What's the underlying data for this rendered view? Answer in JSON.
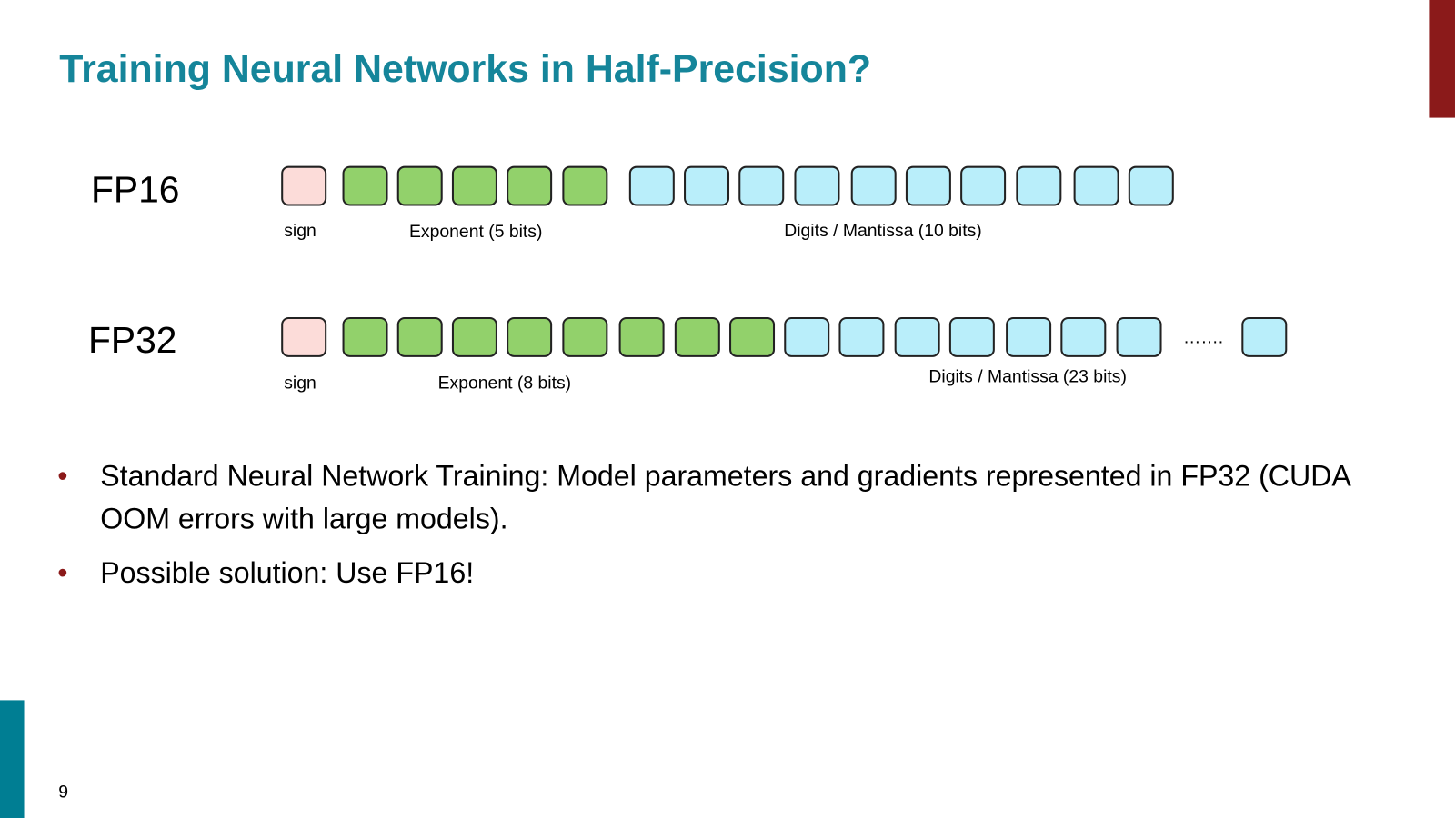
{
  "header": {
    "title": "Training Neural Networks in Half-Precision?"
  },
  "formats": [
    {
      "label": "FP16",
      "sign": "sign",
      "exponent": "Exponent (5 bits)",
      "mantissa": "Digits / Mantissa (10 bits)"
    },
    {
      "label": "FP32",
      "sign": "sign",
      "exponent": "Exponent (8 bits)",
      "mantissa": "Digits / Mantissa (23 bits)",
      "ellipsis": "……."
    }
  ],
  "bullets": [
    "Standard Neural Network Training: Model parameters and gradients represented in FP32 (CUDA OOM errors with large models).",
    "Possible solution: Use FP16!"
  ],
  "footer": {
    "page_number": "9"
  }
}
